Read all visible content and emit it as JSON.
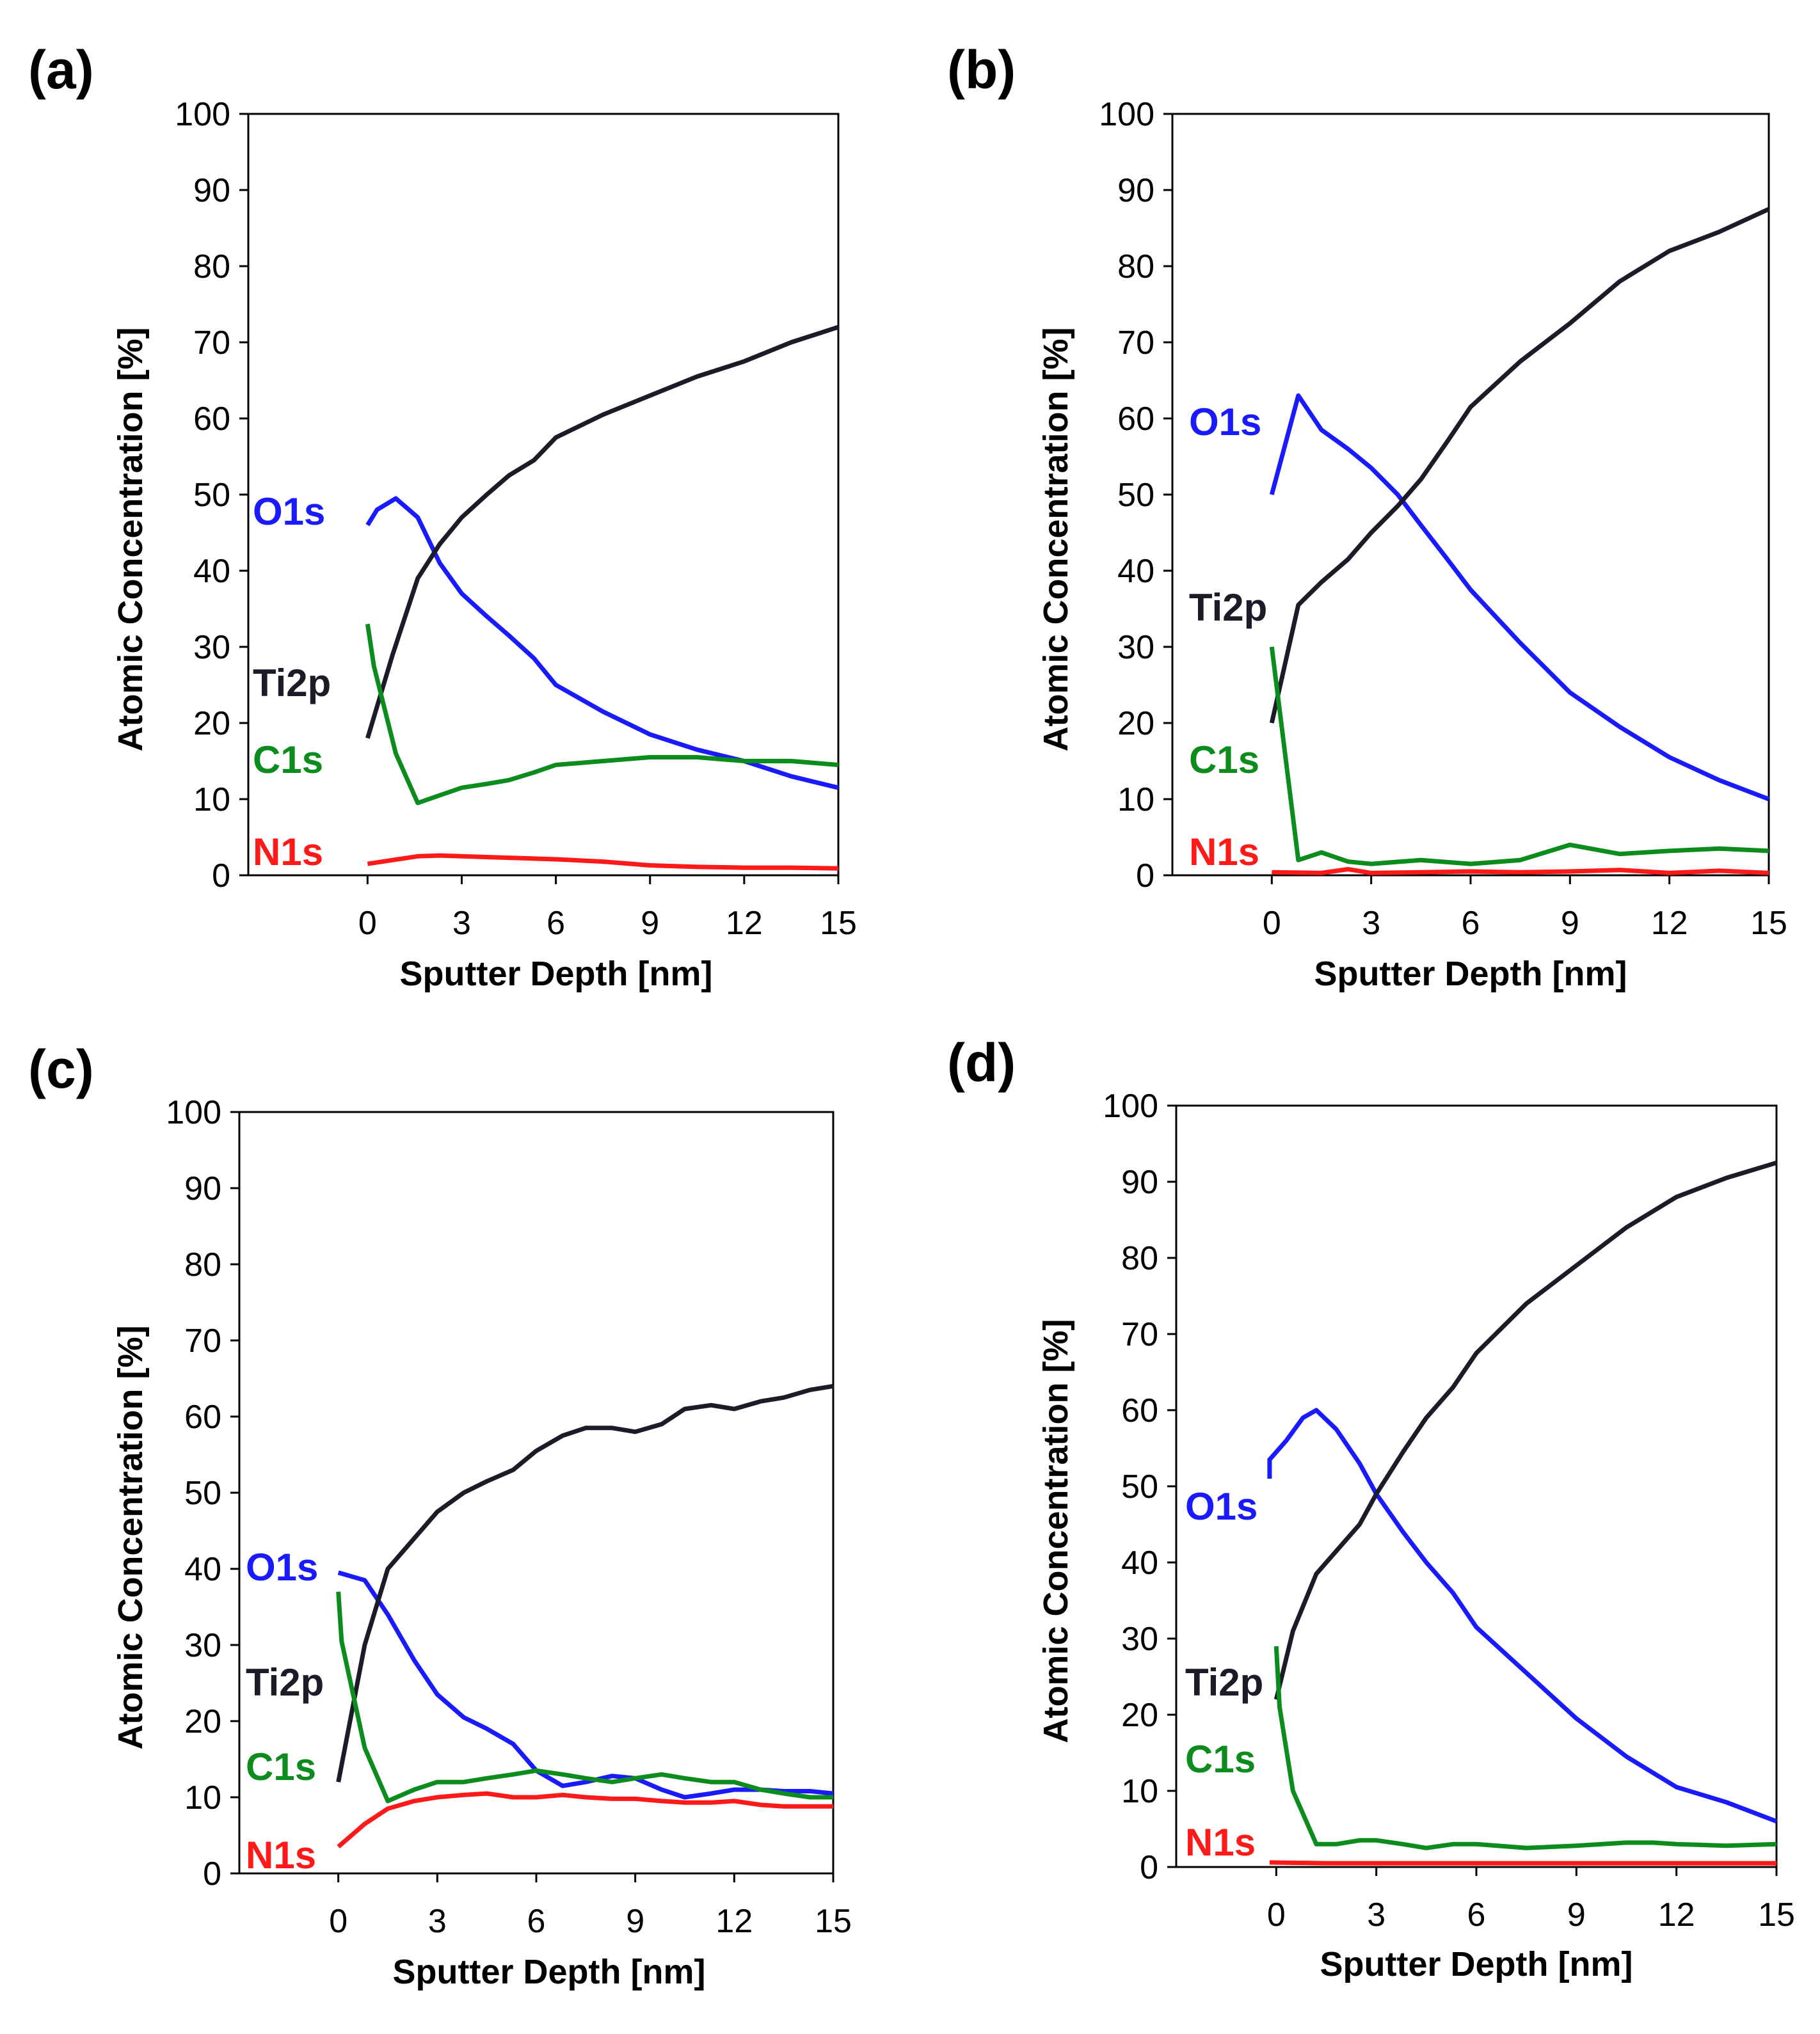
{
  "chart_data": [
    {
      "type": "line",
      "panel_label": "(a)",
      "xlabel": "Sputter Depth [nm]",
      "ylabel": "Atomic Concentration [%]",
      "xlim": [
        -3.8,
        15
      ],
      "ylim": [
        0,
        100
      ],
      "xticks": [
        0,
        3,
        6,
        9,
        12,
        15
      ],
      "yticks": [
        0,
        10,
        20,
        30,
        40,
        50,
        60,
        70,
        80,
        90,
        100
      ],
      "series": [
        {
          "name": "O1s",
          "color": "#1a1aff",
          "x": [
            0,
            0.3,
            0.9,
            1.6,
            2.3,
            3.0,
            3.8,
            4.5,
            5.3,
            6.0,
            7.5,
            9.0,
            10.5,
            12.0,
            13.5,
            15.0
          ],
          "y": [
            46,
            48,
            49.5,
            47,
            41,
            37,
            34,
            31.5,
            28.5,
            25,
            21.5,
            18.5,
            16.5,
            15,
            13,
            11.5
          ]
        },
        {
          "name": "Ti2p",
          "color": "#1c1c28",
          "x": [
            0,
            0.8,
            1.6,
            2.3,
            3.0,
            3.8,
            4.5,
            5.3,
            6.0,
            7.5,
            9.0,
            10.5,
            12.0,
            13.5,
            15.0
          ],
          "y": [
            18,
            29,
            39,
            43.5,
            47,
            50,
            52.5,
            54.5,
            57.5,
            60.5,
            63,
            65.5,
            67.5,
            70,
            72
          ]
        },
        {
          "name": "C1s",
          "color": "#0d8c1e",
          "x": [
            0,
            0.2,
            0.9,
            1.6,
            2.3,
            3.0,
            3.8,
            4.5,
            5.3,
            6.0,
            7.5,
            9.0,
            10.5,
            12.0,
            13.5,
            15.0
          ],
          "y": [
            33,
            27.5,
            16,
            9.5,
            10.5,
            11.5,
            12,
            12.5,
            13.5,
            14.5,
            15,
            15.5,
            15.5,
            15,
            15,
            14.5
          ]
        },
        {
          "name": "N1s",
          "color": "#ff1a1a",
          "x": [
            0,
            0.8,
            1.6,
            2.3,
            3.0,
            4.5,
            6.0,
            7.5,
            9.0,
            10.5,
            12.0,
            13.5,
            15.0
          ],
          "y": [
            1.5,
            2.0,
            2.5,
            2.6,
            2.5,
            2.3,
            2.1,
            1.8,
            1.3,
            1.1,
            1.0,
            1.0,
            0.9
          ]
        }
      ]
    },
    {
      "type": "line",
      "panel_label": "(b)",
      "xlabel": "Sputter Depth [nm]",
      "ylabel": "Atomic Concentration [%]",
      "xlim": [
        -3.0,
        15
      ],
      "ylim": [
        0,
        100
      ],
      "xticks": [
        0,
        3,
        6,
        9,
        12,
        15
      ],
      "yticks": [
        0,
        10,
        20,
        30,
        40,
        50,
        60,
        70,
        80,
        90,
        100
      ],
      "series": [
        {
          "name": "O1s",
          "color": "#1a1aff",
          "x": [
            0,
            0.8,
            1.5,
            2.3,
            3.0,
            3.8,
            4.5,
            5.3,
            6.0,
            7.5,
            9.0,
            10.5,
            12.0,
            13.5,
            15.0
          ],
          "y": [
            50,
            63,
            58.5,
            56,
            53.5,
            50,
            46,
            41.5,
            37.5,
            30.5,
            24,
            19.5,
            15.5,
            12.5,
            10
          ]
        },
        {
          "name": "Ti2p",
          "color": "#1c1c28",
          "x": [
            0,
            0.8,
            1.5,
            2.3,
            3.0,
            3.8,
            4.5,
            5.3,
            6.0,
            7.5,
            9.0,
            10.5,
            12.0,
            13.5,
            15.0
          ],
          "y": [
            20,
            35.5,
            38.5,
            41.5,
            45,
            48.5,
            52,
            57,
            61.5,
            67.5,
            72.5,
            78,
            82,
            84.5,
            87.5
          ]
        },
        {
          "name": "C1s",
          "color": "#0d8c1e",
          "x": [
            0,
            0.8,
            1.5,
            2.3,
            3.0,
            4.5,
            6.0,
            7.5,
            9.0,
            10.5,
            12.0,
            13.5,
            15.0
          ],
          "y": [
            30,
            2,
            3,
            1.8,
            1.5,
            2,
            1.5,
            2,
            4,
            2.8,
            3.2,
            3.5,
            3.2
          ]
        },
        {
          "name": "N1s",
          "color": "#ff1a1a",
          "x": [
            0,
            1.5,
            2.3,
            3.0,
            4.5,
            6.0,
            7.5,
            9.0,
            10.5,
            12.0,
            13.5,
            15.0
          ],
          "y": [
            0.4,
            0.3,
            0.8,
            0.3,
            0.4,
            0.5,
            0.4,
            0.5,
            0.7,
            0.3,
            0.6,
            0.3
          ]
        }
      ]
    },
    {
      "type": "line",
      "panel_label": "(c)",
      "xlabel": "Sputter Depth [nm]",
      "ylabel": "Atomic Concentration [%]",
      "xlim": [
        -3.0,
        15
      ],
      "ylim": [
        0,
        100
      ],
      "xticks": [
        0,
        3,
        6,
        9,
        12,
        15
      ],
      "yticks": [
        0,
        10,
        20,
        30,
        40,
        50,
        60,
        70,
        80,
        90,
        100
      ],
      "series": [
        {
          "name": "O1s",
          "color": "#1a1aff",
          "x": [
            0,
            0.8,
            1.5,
            2.3,
            3.0,
            3.8,
            4.5,
            5.3,
            6.0,
            6.8,
            7.5,
            8.3,
            9.0,
            9.8,
            10.5,
            11.3,
            12.0,
            12.8,
            13.5,
            14.3,
            15.0
          ],
          "y": [
            39.5,
            38.5,
            34,
            28,
            23.5,
            20.5,
            19,
            17,
            13.5,
            11.5,
            12,
            12.8,
            12.5,
            11,
            10,
            10.5,
            11,
            11,
            10.8,
            10.8,
            10.5
          ]
        },
        {
          "name": "Ti2p",
          "color": "#1c1c28",
          "x": [
            0,
            0.8,
            1.5,
            2.3,
            3.0,
            3.8,
            4.5,
            5.3,
            6.0,
            6.8,
            7.5,
            8.3,
            9.0,
            9.8,
            10.5,
            11.3,
            12.0,
            12.8,
            13.5,
            14.3,
            15.0
          ],
          "y": [
            12,
            30,
            40,
            44,
            47.5,
            50,
            51.5,
            53,
            55.5,
            57.5,
            58.5,
            58.5,
            58,
            59,
            61,
            61.5,
            61,
            62,
            62.5,
            63.5,
            64
          ]
        },
        {
          "name": "C1s",
          "color": "#0d8c1e",
          "x": [
            0,
            0.1,
            0.8,
            1.5,
            2.3,
            3.0,
            3.8,
            4.5,
            5.3,
            6.0,
            6.8,
            7.5,
            8.3,
            9.0,
            9.8,
            10.5,
            11.3,
            12.0,
            12.8,
            13.5,
            14.3,
            15.0
          ],
          "y": [
            37,
            30.5,
            16.5,
            9.5,
            11,
            12,
            12,
            12.5,
            13,
            13.5,
            13,
            12.5,
            12,
            12.5,
            13,
            12.5,
            12,
            12,
            11,
            10.5,
            10,
            10
          ]
        },
        {
          "name": "N1s",
          "color": "#ff1a1a",
          "x": [
            0,
            0.8,
            1.5,
            2.3,
            3.0,
            3.8,
            4.5,
            5.3,
            6.0,
            6.8,
            7.5,
            8.3,
            9.0,
            9.8,
            10.5,
            11.3,
            12.0,
            12.8,
            13.5,
            14.3,
            15.0
          ],
          "y": [
            3.5,
            6.5,
            8.5,
            9.5,
            10,
            10.3,
            10.5,
            10,
            10,
            10.3,
            10,
            9.8,
            9.8,
            9.5,
            9.3,
            9.3,
            9.5,
            9,
            8.8,
            8.8,
            8.8
          ]
        }
      ]
    },
    {
      "type": "line",
      "panel_label": "(d)",
      "xlabel": "Sputter Depth [nm]",
      "ylabel": "Atomic Concentration [%]",
      "xlim": [
        -3.0,
        15
      ],
      "ylim": [
        0,
        100
      ],
      "xticks": [
        0,
        3,
        6,
        9,
        12,
        15
      ],
      "yticks": [
        0,
        10,
        20,
        30,
        40,
        50,
        60,
        70,
        80,
        90,
        100
      ],
      "series": [
        {
          "name": "O1s",
          "color": "#1a1aff",
          "x": [
            -0.2,
            -0.2,
            0.3,
            0.8,
            1.2,
            1.8,
            2.5,
            3.0,
            3.8,
            4.5,
            5.3,
            6.0,
            7.5,
            9.0,
            10.5,
            12.0,
            13.5,
            15.0
          ],
          "y": [
            51,
            53.5,
            56,
            59,
            60,
            57.5,
            53,
            49,
            44,
            40,
            36,
            31.5,
            25.5,
            19.5,
            14.5,
            10.5,
            8.5,
            6
          ]
        },
        {
          "name": "Ti2p",
          "color": "#1c1c28",
          "x": [
            0,
            0.5,
            1.2,
            1.8,
            2.5,
            3.0,
            3.8,
            4.5,
            5.3,
            6.0,
            7.5,
            9.0,
            10.5,
            12.0,
            13.5,
            15.0
          ],
          "y": [
            22,
            31,
            38.5,
            41.5,
            45,
            49,
            54.5,
            59,
            63,
            67.5,
            74,
            79,
            84,
            88,
            90.5,
            92.5
          ]
        },
        {
          "name": "C1s",
          "color": "#0d8c1e",
          "x": [
            0,
            0.1,
            0.5,
            1.2,
            1.8,
            2.5,
            3.0,
            3.8,
            4.5,
            5.3,
            6.0,
            7.5,
            9.0,
            10.5,
            11.3,
            12.0,
            13.5,
            15.0
          ],
          "y": [
            29,
            21,
            10,
            3,
            3,
            3.5,
            3.5,
            3,
            2.5,
            3,
            3,
            2.5,
            2.8,
            3.2,
            3.2,
            3,
            2.8,
            3
          ]
        },
        {
          "name": "N1s",
          "color": "#ff1a1a",
          "x": [
            -0.2,
            1.5,
            3.0,
            4.5,
            6.0,
            7.5,
            9.0,
            10.5,
            12.0,
            13.5,
            15.0
          ],
          "y": [
            0.6,
            0.5,
            0.5,
            0.5,
            0.5,
            0.5,
            0.5,
            0.5,
            0.5,
            0.5,
            0.5
          ]
        }
      ]
    }
  ]
}
